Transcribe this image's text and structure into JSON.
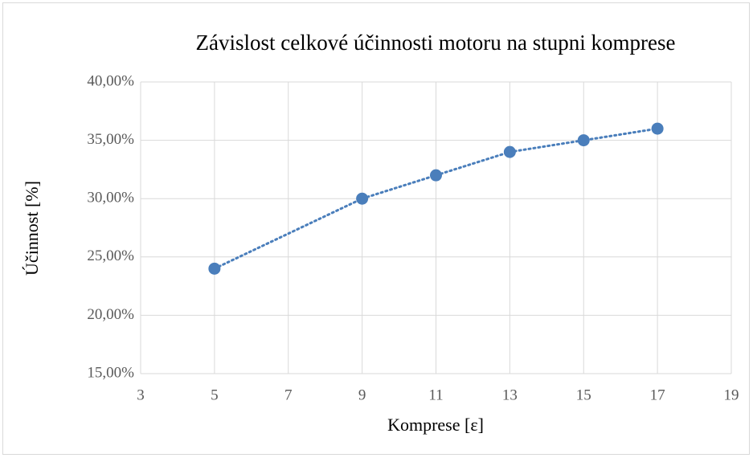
{
  "chart_data": {
    "type": "scatter",
    "title": "Závislost celkové účinnosti motoru na stupni komprese",
    "xlabel": "Komprese [ε]",
    "ylabel": "Účinnost [%]",
    "series": [
      {
        "name": "Účinnost",
        "color": "#4a7ebb",
        "x": [
          5,
          9,
          11,
          13,
          15,
          17
        ],
        "values": [
          24,
          30,
          32,
          34,
          35,
          36
        ]
      }
    ],
    "line": "dotted",
    "xlim": [
      3,
      19
    ],
    "xticks": [
      3,
      5,
      7,
      9,
      11,
      13,
      15,
      17,
      19
    ],
    "ylim": [
      15,
      40
    ],
    "yticks": [
      {
        "value": 15,
        "label": "15,00%"
      },
      {
        "value": 20,
        "label": "20,00%"
      },
      {
        "value": 25,
        "label": "25,00%"
      },
      {
        "value": 30,
        "label": "30,00%"
      },
      {
        "value": 35,
        "label": "35,00%"
      },
      {
        "value": 40,
        "label": "40,00%"
      }
    ],
    "grid": true
  }
}
